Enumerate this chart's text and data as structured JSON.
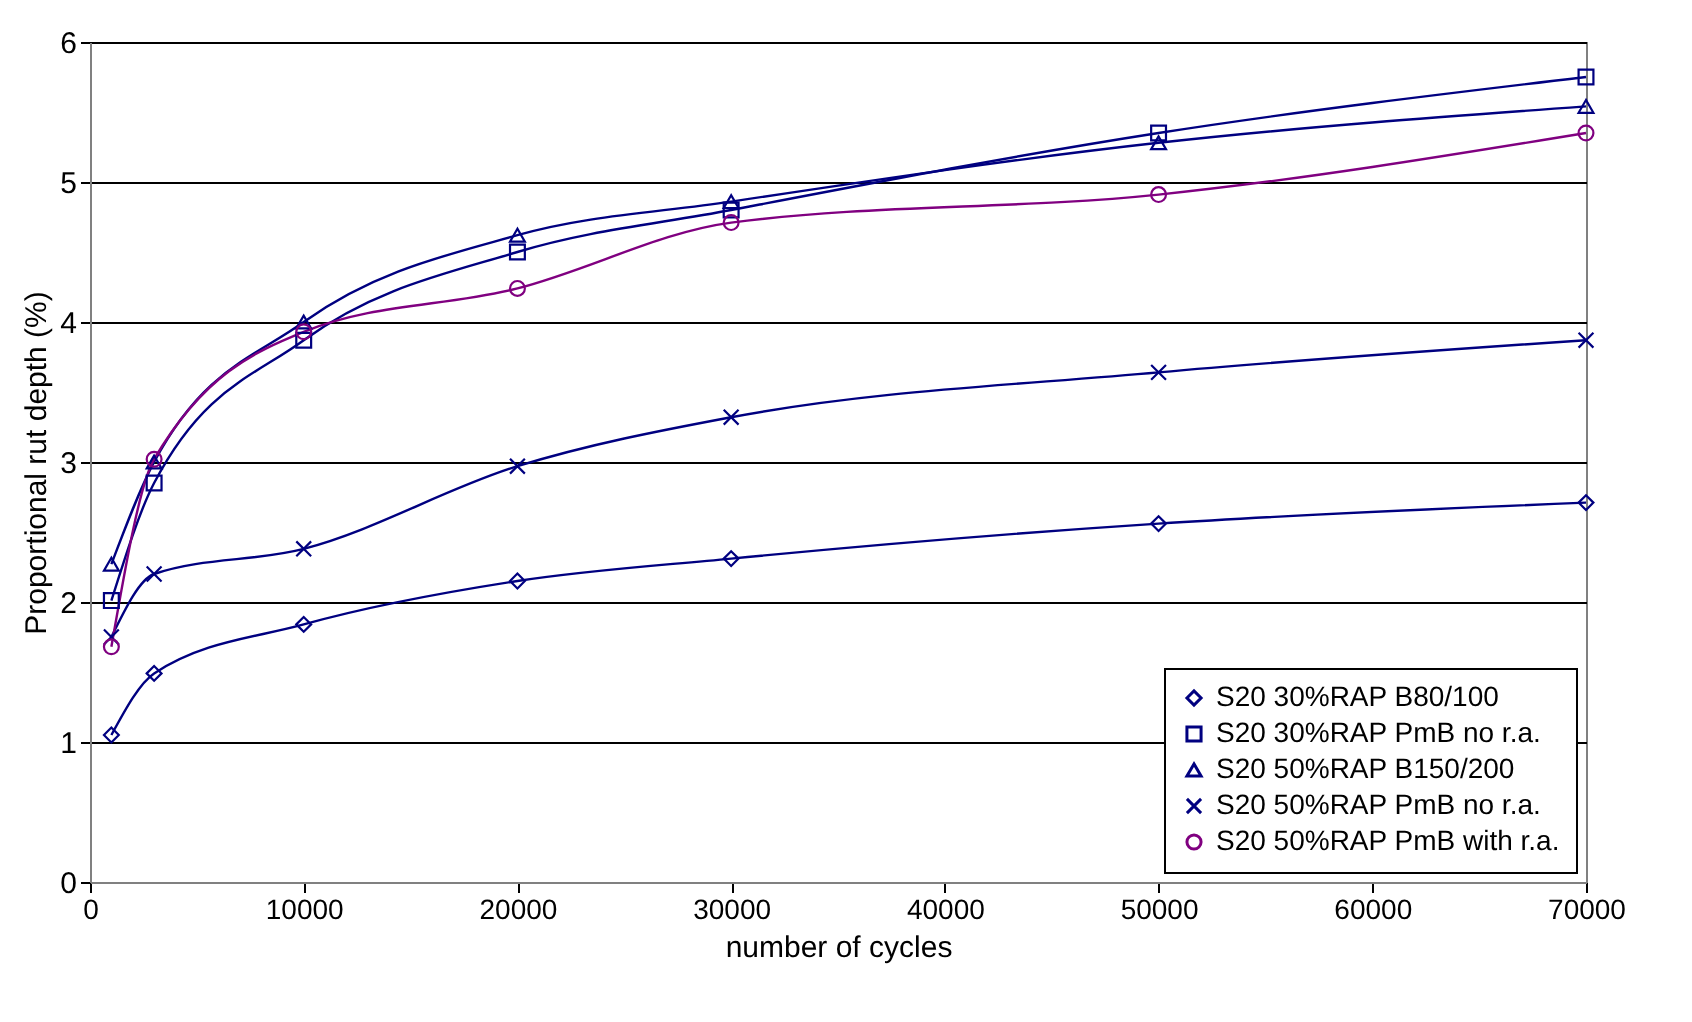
{
  "chart_data": {
    "type": "line",
    "xlabel": "number of cycles",
    "ylabel": "Proportional rut depth (%)",
    "x": [
      1000,
      3000,
      10000,
      20000,
      30000,
      50000,
      70000
    ],
    "xlim": [
      0,
      70000
    ],
    "xticks": [
      0,
      10000,
      20000,
      30000,
      40000,
      50000,
      60000,
      70000
    ],
    "ylim": [
      0,
      6
    ],
    "yticks": [
      0,
      1,
      2,
      3,
      4,
      5,
      6
    ],
    "grid": "y",
    "legend": "bottom right",
    "series": [
      {
        "name": "S20 30%RAP B80/100",
        "color": "#000080",
        "marker": "diamond",
        "values": [
          1.05,
          1.49,
          1.84,
          2.15,
          2.31,
          2.56,
          2.71
        ]
      },
      {
        "name": "S20 30%RAP PmB no r.a.",
        "color": "#000080",
        "marker": "square",
        "values": [
          2.01,
          2.85,
          3.87,
          4.5,
          4.8,
          5.35,
          5.75
        ]
      },
      {
        "name": "S20 50%RAP B150/200",
        "color": "#000080",
        "marker": "triangle",
        "values": [
          2.27,
          3.0,
          4.0,
          4.62,
          4.86,
          5.28,
          5.54
        ]
      },
      {
        "name": "S20 50%RAP PmB no r.a.",
        "color": "#000080",
        "marker": "cross",
        "values": [
          1.75,
          2.2,
          2.38,
          2.97,
          3.32,
          3.64,
          3.87
        ]
      },
      {
        "name": "S20 50%RAP PmB with r.a.",
        "color": "#800080",
        "marker": "circle",
        "values": [
          1.68,
          3.02,
          3.93,
          4.24,
          4.71,
          4.91,
          5.35
        ]
      }
    ]
  }
}
